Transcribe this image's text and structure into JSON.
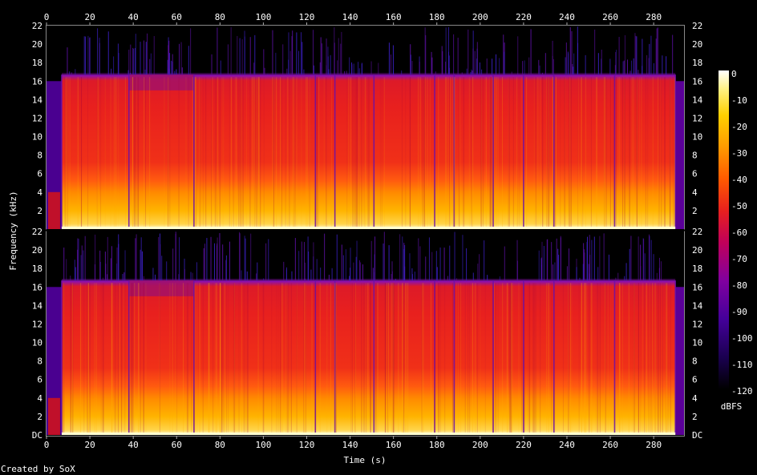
{
  "chart_data": {
    "type": "heatmap",
    "title": "",
    "xlabel": "Time (s)",
    "ylabel": "Frequency (kHz)",
    "xlim": [
      0,
      294
    ],
    "x_ticks": [
      "0",
      "20",
      "40",
      "60",
      "80",
      "100",
      "120",
      "140",
      "160",
      "180",
      "200",
      "220",
      "240",
      "260",
      "280"
    ],
    "channels": [
      {
        "name": "",
        "ylim": [
          0,
          22
        ],
        "y_ticks_left": [
          "22",
          "20",
          "18",
          "16",
          "14",
          "12",
          "10",
          "8",
          "6",
          "4",
          "2"
        ],
        "y_ticks_right": [
          "22",
          "20",
          "18",
          "16",
          "14",
          "12",
          "10",
          "8",
          "6",
          "4",
          "2"
        ]
      },
      {
        "name": "",
        "ylim": [
          0,
          22
        ],
        "y_ticks_left": [
          "22",
          "20",
          "18",
          "16",
          "14",
          "12",
          "10",
          "8",
          "6",
          "4",
          "2",
          "DC"
        ],
        "y_ticks_right": [
          "22",
          "20",
          "18",
          "16",
          "14",
          "12",
          "10",
          "8",
          "6",
          "4",
          "2",
          "DC"
        ]
      }
    ],
    "lowpass_cutoff_khz": 16.7,
    "segment_boundaries_s": [
      7,
      38,
      68,
      124,
      133,
      151,
      179,
      188,
      206,
      220,
      234,
      262,
      290
    ],
    "colorbar": {
      "label": "dBFS",
      "range": [
        -120,
        0
      ],
      "ticks": [
        "0",
        "-10",
        "-20",
        "-30",
        "-40",
        "-50",
        "-60",
        "-70",
        "-80",
        "-90",
        "-100",
        "-110",
        "-120"
      ]
    },
    "colormap": [
      "#000000",
      "#2a006a",
      "#5a00a0",
      "#8a00a0",
      "#c0005a",
      "#e61e1e",
      "#ff5a00",
      "#ff9a00",
      "#ffd000",
      "#fff080",
      "#ffffff"
    ]
  },
  "footer": {
    "credit": "Created by SoX"
  }
}
